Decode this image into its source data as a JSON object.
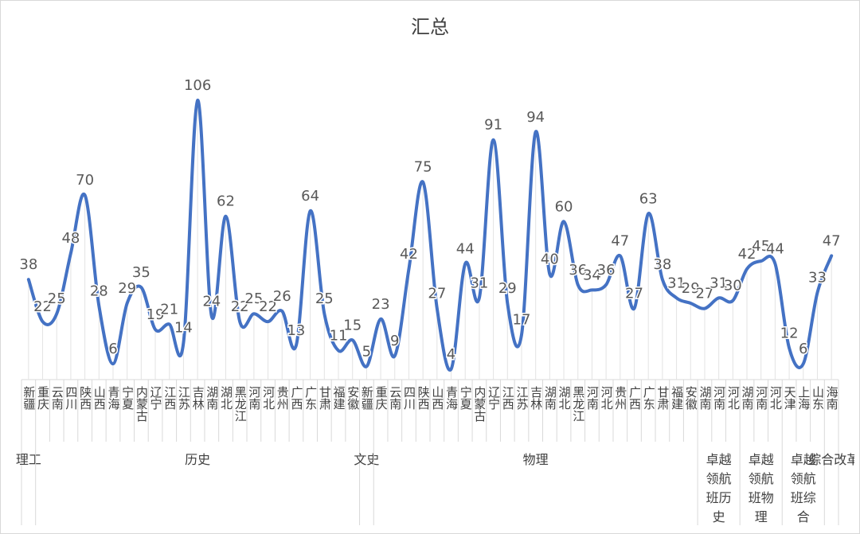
{
  "chart_data": {
    "type": "line",
    "title": "汇总",
    "color": "#4472c4",
    "groups": [
      {
        "name": "理工",
        "categories": [
          "新疆"
        ]
      },
      {
        "name": "历史",
        "categories": [
          "重庆",
          "云南",
          "四川",
          "陕西",
          "山西",
          "青海",
          "宁夏",
          "内蒙古",
          "辽宁",
          "江西",
          "江苏",
          "吉林",
          "湖南",
          "湖北",
          "黑龙江",
          "河南",
          "河北",
          "贵州",
          "广西",
          "广东",
          "甘肃",
          "福建",
          "安徽"
        ]
      },
      {
        "name": "文史",
        "categories": [
          "新疆"
        ]
      },
      {
        "name": "物理",
        "categories": [
          "重庆",
          "云南",
          "四川",
          "陕西",
          "山西",
          "青海",
          "宁夏",
          "内蒙古",
          "辽宁",
          "江西",
          "江苏",
          "吉林",
          "湖南",
          "湖北",
          "黑龙江",
          "河南",
          "河北",
          "贵州",
          "广西",
          "广东",
          "甘肃",
          "福建",
          "安徽"
        ]
      },
      {
        "name": "卓越领航班历史",
        "categories": [
          "湖南",
          "河南",
          "河北"
        ]
      },
      {
        "name": "卓越领航班物理",
        "categories": [
          "湖南",
          "河南",
          "河北"
        ]
      },
      {
        "name": "卓越领航班综合",
        "categories": [
          "天津",
          "上海",
          "山东"
        ]
      },
      {
        "name": "综合改革",
        "categories": [
          "海南"
        ]
      }
    ],
    "values": [
      38,
      22,
      25,
      48,
      70,
      28,
      6,
      29,
      35,
      19,
      21,
      14,
      106,
      24,
      62,
      22,
      25,
      22,
      26,
      13,
      64,
      25,
      11,
      15,
      5,
      23,
      9,
      42,
      75,
      27,
      4,
      44,
      31,
      91,
      29,
      17,
      94,
      40,
      60,
      36,
      34,
      36,
      47,
      27,
      63,
      38,
      31,
      29,
      27,
      31,
      30,
      42,
      45,
      44,
      12,
      6,
      33,
      47
    ]
  }
}
